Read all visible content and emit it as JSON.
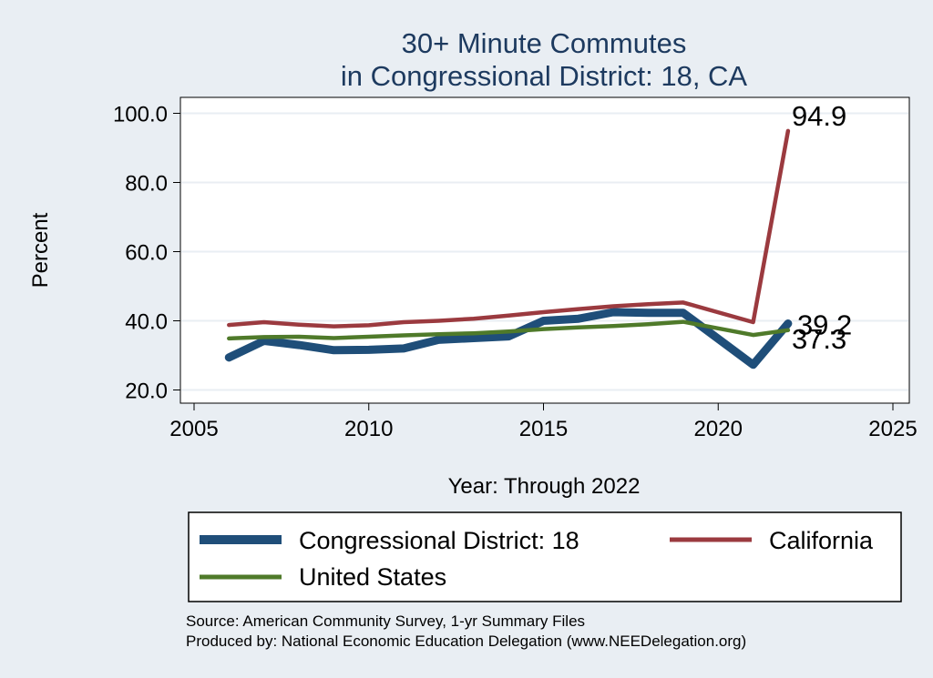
{
  "chart_data": {
    "type": "line",
    "title": [
      "30+ Minute Commutes",
      "in Congressional District:  18, CA"
    ],
    "xlabel": "Year: Through 2022",
    "ylabel": "Percent",
    "xlim": [
      2005,
      2025
    ],
    "ylim": [
      20,
      100
    ],
    "xticks": [
      2005,
      2010,
      2015,
      2020,
      2025
    ],
    "yticks": [
      20,
      40,
      60,
      80,
      100
    ],
    "ytick_labels": [
      "20.0",
      "40.0",
      "60.0",
      "80.0",
      "100.0"
    ],
    "grid": true,
    "legend_position": "bottom",
    "series": [
      {
        "name": "Congressional District:  18",
        "color": "#1f4e79",
        "x": [
          2006,
          2007,
          2008,
          2009,
          2010,
          2011,
          2012,
          2013,
          2014,
          2015,
          2016,
          2017,
          2018,
          2019,
          2021,
          2022
        ],
        "values": [
          29.4,
          34.2,
          33.0,
          31.5,
          31.6,
          32.0,
          34.5,
          35.0,
          35.5,
          40.0,
          40.6,
          42.5,
          42.3,
          42.3,
          27.3,
          39.2
        ],
        "end_label": "39.2"
      },
      {
        "name": "California",
        "color": "#9b3a3f",
        "x": [
          2006,
          2007,
          2008,
          2009,
          2010,
          2011,
          2012,
          2013,
          2014,
          2015,
          2016,
          2017,
          2018,
          2019,
          2021,
          2022
        ],
        "values": [
          38.8,
          39.6,
          38.9,
          38.4,
          38.7,
          39.6,
          40.0,
          40.6,
          41.5,
          42.5,
          43.4,
          44.2,
          44.8,
          45.3,
          39.6,
          94.9
        ],
        "end_label": "94.9"
      },
      {
        "name": "United States",
        "color": "#4f7a2a",
        "x": [
          2006,
          2007,
          2008,
          2009,
          2010,
          2011,
          2012,
          2013,
          2014,
          2015,
          2016,
          2017,
          2018,
          2019,
          2021,
          2022
        ],
        "values": [
          34.9,
          35.3,
          35.4,
          35.0,
          35.4,
          35.8,
          36.1,
          36.4,
          36.9,
          37.6,
          38.1,
          38.5,
          39.0,
          39.7,
          35.9,
          37.3
        ],
        "end_label": "37.3"
      }
    ]
  },
  "footer": {
    "source": "Source: American Community Survey, 1-yr Summary Files",
    "producer": "Produced by: National Economic Education Delegation (www.NEEDelegation.org)"
  }
}
